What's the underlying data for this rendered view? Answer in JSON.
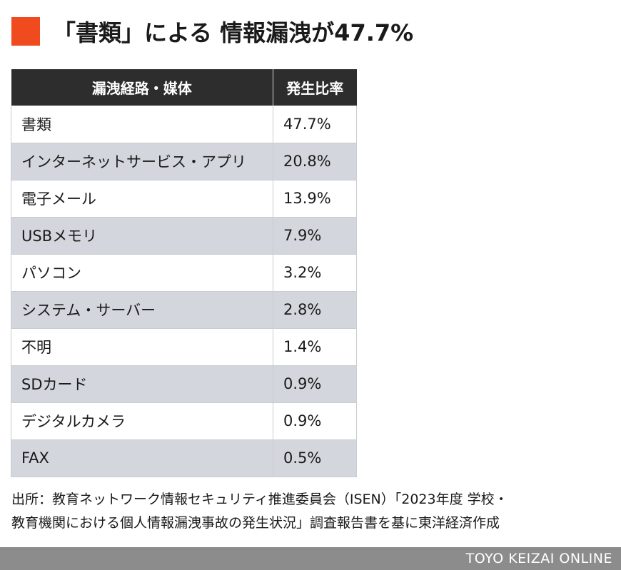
{
  "title": "「書類」による 情報漏洩が47.7%",
  "colors": {
    "accent": "#f04b1e",
    "header_bg": "#2d2d2d",
    "row_alt": "#d3d6dc",
    "footer_bg": "#8c8c8c"
  },
  "chart_data": {
    "type": "table",
    "title": "「書類」による 情報漏洩が47.7%",
    "columns": [
      "漏洩経路・媒体",
      "発生比率"
    ],
    "rows": [
      {
        "route": "書類",
        "rate": "47.7%"
      },
      {
        "route": "インターネットサービス・アプリ",
        "rate": "20.8%"
      },
      {
        "route": "電子メール",
        "rate": "13.9%"
      },
      {
        "route": "USBメモリ",
        "rate": "7.9%"
      },
      {
        "route": "パソコン",
        "rate": "3.2%"
      },
      {
        "route": "システム・サーバー",
        "rate": "2.8%"
      },
      {
        "route": "不明",
        "rate": "1.4%"
      },
      {
        "route": "SDカード",
        "rate": "0.9%"
      },
      {
        "route": "デジタルカメラ",
        "rate": "0.9%"
      },
      {
        "route": "FAX",
        "rate": "0.5%"
      }
    ]
  },
  "source": {
    "line1": "出所：教育ネットワーク情報セキュリティ推進委員会（ISEN）「2023年度 学校・",
    "line2": "教育機関における個人情報漏洩事故の発生状況」調査報告書を基に東洋経済作成"
  },
  "footer": {
    "brand": "TOYO KEIZAI ONLINE"
  }
}
